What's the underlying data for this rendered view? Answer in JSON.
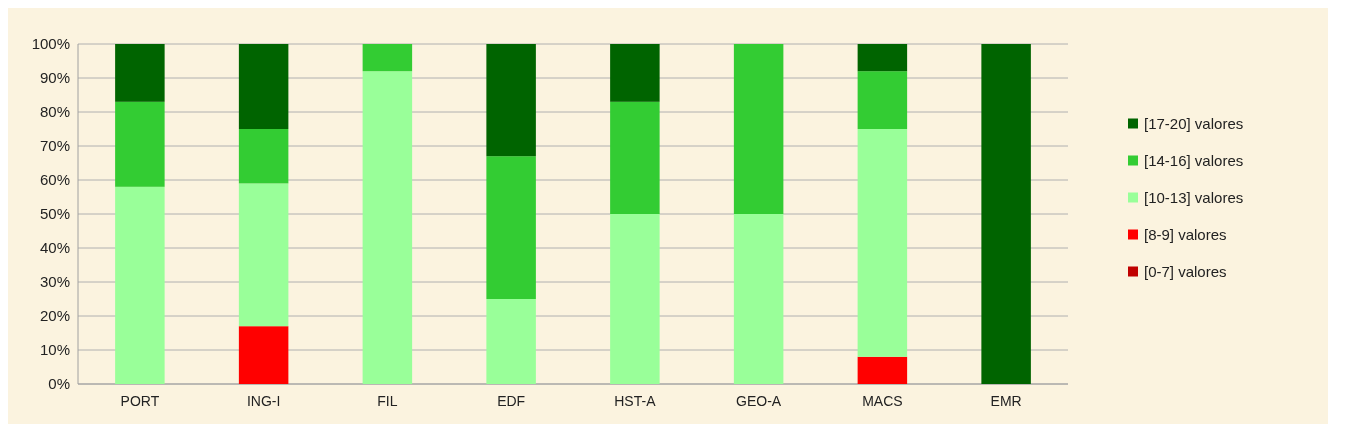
{
  "chart_data": {
    "type": "bar",
    "stacked": true,
    "categories": [
      "PORT",
      "ING-I",
      "FIL",
      "EDF",
      "HST-A",
      "GEO-A",
      "MACS",
      "EMR"
    ],
    "series": [
      {
        "name": "[0-7] valores",
        "color": "#c00000",
        "values": [
          0,
          0,
          0,
          0,
          0,
          0,
          0,
          0
        ]
      },
      {
        "name": "[8-9] valores",
        "color": "#ff0000",
        "values": [
          0,
          17,
          0,
          0,
          0,
          0,
          8,
          0
        ]
      },
      {
        "name": "[10-13] valores",
        "color": "#99ff99",
        "values": [
          58,
          42,
          92,
          25,
          50,
          50,
          67,
          0
        ]
      },
      {
        "name": "[14-16] valores",
        "color": "#33cc33",
        "values": [
          25,
          16,
          8,
          42,
          33,
          50,
          17,
          0
        ]
      },
      {
        "name": "[17-20] valores",
        "color": "#006400",
        "values": [
          17,
          25,
          0,
          33,
          17,
          0,
          8,
          100
        ]
      }
    ],
    "ylim": [
      0,
      100
    ],
    "yticks": [
      {
        "value": 0,
        "label": "0%"
      },
      {
        "value": 10,
        "label": "10%"
      },
      {
        "value": 20,
        "label": "20%"
      },
      {
        "value": 30,
        "label": "30%"
      },
      {
        "value": 40,
        "label": "40%"
      },
      {
        "value": 50,
        "label": "50%"
      },
      {
        "value": 60,
        "label": "60%"
      },
      {
        "value": 70,
        "label": "70%"
      },
      {
        "value": 80,
        "label": "80%"
      },
      {
        "value": 90,
        "label": "90%"
      },
      {
        "value": 100,
        "label": "100%"
      }
    ],
    "grid": "y",
    "legend": "right"
  }
}
